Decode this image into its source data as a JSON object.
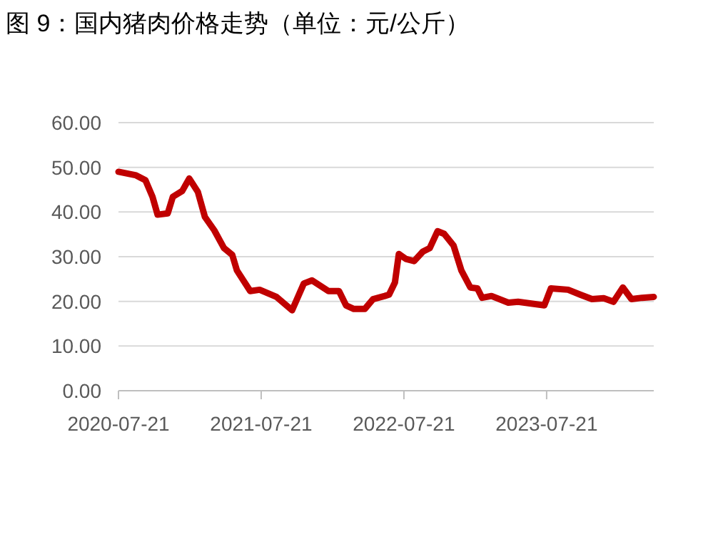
{
  "chart_data": {
    "type": "line",
    "title": "图 9：国内猪肉价格走势（单位：元/公斤）",
    "x": [
      "2020-07-21",
      "2020-09-04",
      "2020-09-28",
      "2020-10-16",
      "2020-10-29",
      "2020-11-24",
      "2020-12-07",
      "2020-12-31",
      "2021-01-18",
      "2021-02-09",
      "2021-02-27",
      "2021-03-23",
      "2021-04-17",
      "2021-05-08",
      "2021-05-20",
      "2021-06-23",
      "2021-07-17",
      "2021-08-29",
      "2021-10-08",
      "2021-11-07",
      "2021-11-28",
      "2022-01-09",
      "2022-02-05",
      "2022-02-23",
      "2022-03-15",
      "2022-04-12",
      "2022-05-03",
      "2022-06-02",
      "2022-06-13",
      "2022-06-28",
      "2022-07-08",
      "2022-07-26",
      "2022-08-16",
      "2022-09-07",
      "2022-09-25",
      "2022-10-15",
      "2022-11-01",
      "2022-11-25",
      "2022-12-15",
      "2023-01-07",
      "2023-01-25",
      "2023-02-06",
      "2023-03-02",
      "2023-04-14",
      "2023-05-09",
      "2023-07-15",
      "2023-08-01",
      "2023-09-14",
      "2023-10-15",
      "2023-11-14",
      "2023-12-14",
      "2024-01-08",
      "2024-02-01",
      "2024-02-23",
      "2024-03-21",
      "2024-04-20"
    ],
    "series": [
      {
        "color": "#c00000",
        "values": [
          49.0,
          48.2,
          47.1,
          43.4,
          39.4,
          39.7,
          43.4,
          44.7,
          47.5,
          44.5,
          38.9,
          35.9,
          31.9,
          30.4,
          26.9,
          22.3,
          22.6,
          21.0,
          18.0,
          24.0,
          24.7,
          22.3,
          22.3,
          19.1,
          18.3,
          18.3,
          20.5,
          21.2,
          21.5,
          24.2,
          30.6,
          29.5,
          29.0,
          31.1,
          31.9,
          35.7,
          35.1,
          32.5,
          26.9,
          23.1,
          22.9,
          20.8,
          21.2,
          19.7,
          19.9,
          19.1,
          22.9,
          22.6,
          21.5,
          20.5,
          20.7,
          19.9,
          23.1,
          20.5,
          20.8,
          21.0
        ]
      }
    ],
    "xlim": [
      "2020-07-21",
      "2024-04-20"
    ],
    "xticks": [
      "2020-07-21",
      "2021-07-21",
      "2022-07-21",
      "2023-07-21"
    ],
    "ylim": [
      0,
      60
    ],
    "yticks": [
      {
        "value": 0,
        "label": "0.00"
      },
      {
        "value": 10,
        "label": "10.00"
      },
      {
        "value": 20,
        "label": "20.00"
      },
      {
        "value": 30,
        "label": "30.00"
      },
      {
        "value": 40,
        "label": "40.00"
      },
      {
        "value": 50,
        "label": "50.00"
      },
      {
        "value": 60,
        "label": "60.00"
      }
    ],
    "grid": "y",
    "marker": "none",
    "line_style": "solid"
  }
}
